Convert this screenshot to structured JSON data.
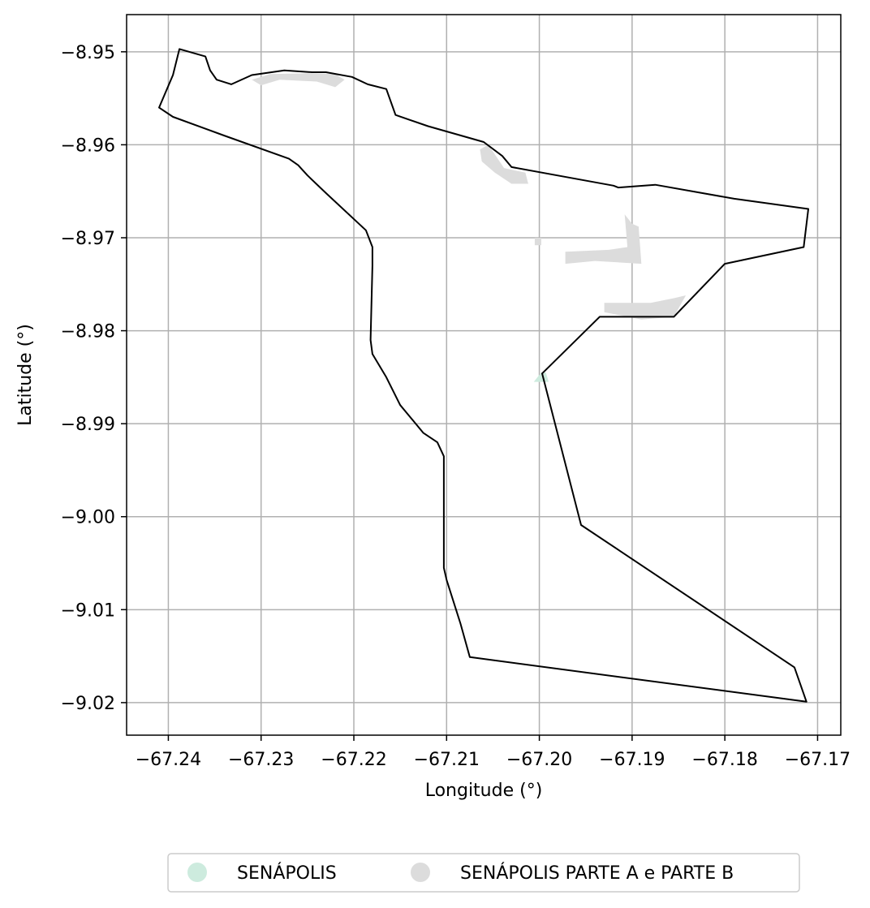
{
  "chart_data": {
    "type": "map",
    "xlabel": "Longitude (°)",
    "ylabel": "Latitude (°)",
    "xlim": [
      -67.2445,
      -67.1675
    ],
    "ylim": [
      -9.0235,
      -8.946
    ],
    "x_ticks": [
      -67.24,
      -67.23,
      -67.22,
      -67.21,
      -67.2,
      -67.19,
      -67.18,
      -67.17
    ],
    "x_tick_labels": [
      "−67.24",
      "−67.23",
      "−67.22",
      "−67.21",
      "−67.20",
      "−67.19",
      "−67.18",
      "−67.17"
    ],
    "y_ticks": [
      -8.95,
      -8.96,
      -8.97,
      -8.98,
      -8.99,
      -9.0,
      -9.01,
      -9.02
    ],
    "y_tick_labels": [
      "−8.95",
      "−8.96",
      "−8.97",
      "−8.98",
      "−8.99",
      "−9.00",
      "−9.01",
      "−9.02"
    ],
    "grid": true,
    "legend_placement": "bottom-center",
    "series": [
      {
        "name": "SENÁPOLIS",
        "color": "#cdebde",
        "shapes": [
          [
            [
              -67.2006,
              -8.9855
            ],
            [
              -67.1998,
              -8.9845
            ],
            [
              -67.1993,
              -8.9845
            ],
            [
              -67.199,
              -8.9855
            ]
          ]
        ]
      },
      {
        "name": "SENÁPOLIS PARTE A e PARTE B",
        "color": "#dcdcdc",
        "shapes": [
          [
            [
              -67.231,
              -8.953
            ],
            [
              -67.229,
              -8.9524
            ],
            [
              -67.225,
              -8.9523
            ],
            [
              -67.222,
              -8.9524
            ],
            [
              -67.221,
              -8.953
            ],
            [
              -67.222,
              -8.9538
            ],
            [
              -67.224,
              -8.9532
            ],
            [
              -67.228,
              -8.953
            ],
            [
              -67.23,
              -8.9536
            ]
          ],
          [
            [
              -67.2064,
              -8.9605
            ],
            [
              -67.2055,
              -8.96
            ],
            [
              -67.2038,
              -8.9625
            ],
            [
              -67.2015,
              -8.963
            ],
            [
              -67.2012,
              -8.9642
            ],
            [
              -67.203,
              -8.9642
            ],
            [
              -67.2048,
              -8.963
            ],
            [
              -67.2062,
              -8.9618
            ]
          ],
          [
            [
              -67.2005,
              -8.97
            ],
            [
              -67.1998,
              -8.97
            ],
            [
              -67.1998,
              -8.9708
            ],
            [
              -67.2005,
              -8.9708
            ]
          ],
          [
            [
              -67.1972,
              -8.9715
            ],
            [
              -67.1925,
              -8.9713
            ],
            [
              -67.1905,
              -8.971
            ],
            [
              -67.1908,
              -8.9675
            ],
            [
              -67.19,
              -8.9685
            ],
            [
              -67.1893,
              -8.9688
            ],
            [
              -67.189,
              -8.9728
            ],
            [
              -67.194,
              -8.9725
            ],
            [
              -67.1972,
              -8.9728
            ]
          ],
          [
            [
              -67.193,
              -8.977
            ],
            [
              -67.188,
              -8.977
            ],
            [
              -67.1855,
              -8.9765
            ],
            [
              -67.1842,
              -8.9762
            ],
            [
              -67.1855,
              -8.9785
            ],
            [
              -67.189,
              -8.9788
            ],
            [
              -67.193,
              -8.978
            ]
          ]
        ]
      }
    ],
    "boundary": [
      [
        -67.241,
        -8.956
      ],
      [
        -67.2395,
        -8.9525
      ],
      [
        -67.2388,
        -8.9497
      ],
      [
        -67.236,
        -8.9505
      ],
      [
        -67.2355,
        -8.952
      ],
      [
        -67.2348,
        -8.953
      ],
      [
        -67.2332,
        -8.9535
      ],
      [
        -67.231,
        -8.9525
      ],
      [
        -67.2275,
        -8.952
      ],
      [
        -67.2245,
        -8.9522
      ],
      [
        -67.223,
        -8.9522
      ],
      [
        -67.2202,
        -8.9527
      ],
      [
        -67.2185,
        -8.9535
      ],
      [
        -67.2165,
        -8.954
      ],
      [
        -67.2155,
        -8.9568
      ],
      [
        -67.212,
        -8.958
      ],
      [
        -67.206,
        -8.9597
      ],
      [
        -67.204,
        -8.9612
      ],
      [
        -67.203,
        -8.9624
      ],
      [
        -67.192,
        -8.9644
      ],
      [
        -67.1915,
        -8.9646
      ],
      [
        -67.1875,
        -8.9643
      ],
      [
        -67.179,
        -8.9658
      ],
      [
        -67.171,
        -8.9669
      ],
      [
        -67.1715,
        -8.971
      ],
      [
        -67.18,
        -8.9728
      ],
      [
        -67.1855,
        -8.9785
      ],
      [
        -67.1935,
        -8.9785
      ],
      [
        -67.1997,
        -8.9846
      ],
      [
        -67.1955,
        -9.0009
      ],
      [
        -67.1725,
        -9.0162
      ],
      [
        -67.1712,
        -9.0199
      ],
      [
        -67.2075,
        -9.0151
      ],
      [
        -67.2085,
        -9.0115
      ],
      [
        -67.21,
        -9.0068
      ],
      [
        -67.2103,
        -9.0055
      ],
      [
        -67.2103,
        -8.9935
      ],
      [
        -67.211,
        -8.992
      ],
      [
        -67.2125,
        -8.991
      ],
      [
        -67.215,
        -8.988
      ],
      [
        -67.2165,
        -8.985
      ],
      [
        -67.218,
        -8.9825
      ],
      [
        -67.2182,
        -8.981
      ],
      [
        -67.218,
        -8.973
      ],
      [
        -67.218,
        -8.971
      ],
      [
        -67.2187,
        -8.9692
      ],
      [
        -67.223,
        -8.9652
      ],
      [
        -67.225,
        -8.9633
      ],
      [
        -67.226,
        -8.9622
      ],
      [
        -67.227,
        -8.9615
      ],
      [
        -67.234,
        -8.959
      ],
      [
        -67.2395,
        -8.957
      ]
    ]
  }
}
